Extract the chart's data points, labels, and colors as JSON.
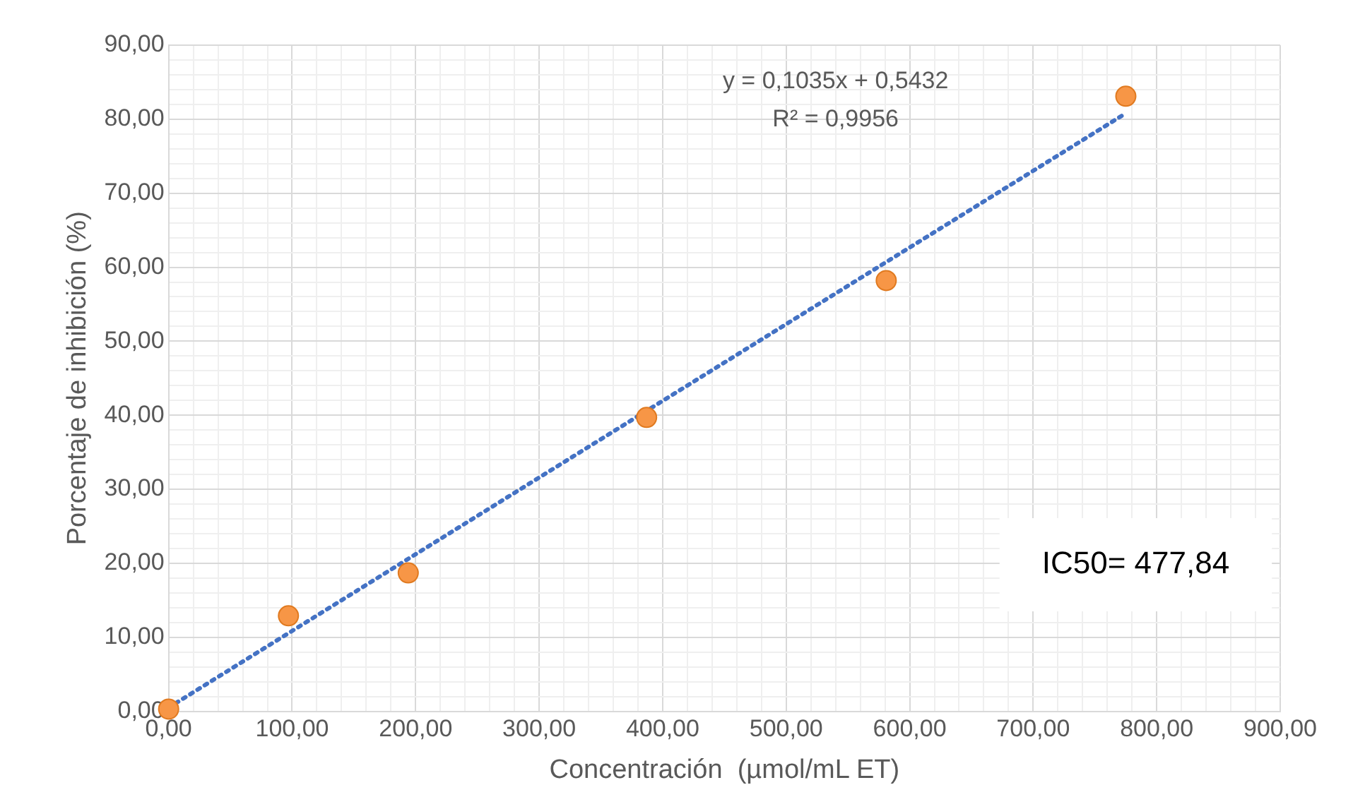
{
  "chart_data": {
    "type": "scatter",
    "xlabel": "Concentración  (µmol/mL ET)",
    "ylabel": "Porcentaje de inhibición (%)",
    "xlim": [
      0,
      900
    ],
    "xticks": [
      {
        "value": 0,
        "label": "0,00"
      },
      {
        "value": 20,
        "label": null
      },
      {
        "value": 40,
        "label": null
      },
      {
        "value": 60,
        "label": null
      },
      {
        "value": 80,
        "label": null
      },
      {
        "value": 100,
        "label": "100,00"
      },
      {
        "value": 120,
        "label": null
      },
      {
        "value": 140,
        "label": null
      },
      {
        "value": 160,
        "label": null
      },
      {
        "value": 180,
        "label": null
      },
      {
        "value": 200,
        "label": "200,00"
      },
      {
        "value": 220,
        "label": null
      },
      {
        "value": 240,
        "label": null
      },
      {
        "value": 260,
        "label": null
      },
      {
        "value": 280,
        "label": null
      },
      {
        "value": 300,
        "label": "300,00"
      },
      {
        "value": 320,
        "label": null
      },
      {
        "value": 340,
        "label": null
      },
      {
        "value": 360,
        "label": null
      },
      {
        "value": 380,
        "label": null
      },
      {
        "value": 400,
        "label": "400,00"
      },
      {
        "value": 420,
        "label": null
      },
      {
        "value": 440,
        "label": null
      },
      {
        "value": 460,
        "label": null
      },
      {
        "value": 480,
        "label": null
      },
      {
        "value": 500,
        "label": "500,00"
      },
      {
        "value": 520,
        "label": null
      },
      {
        "value": 540,
        "label": null
      },
      {
        "value": 560,
        "label": null
      },
      {
        "value": 580,
        "label": null
      },
      {
        "value": 600,
        "label": "600,00"
      },
      {
        "value": 620,
        "label": null
      },
      {
        "value": 640,
        "label": null
      },
      {
        "value": 660,
        "label": null
      },
      {
        "value": 680,
        "label": null
      },
      {
        "value": 700,
        "label": "700,00"
      },
      {
        "value": 720,
        "label": null
      },
      {
        "value": 740,
        "label": null
      },
      {
        "value": 760,
        "label": null
      },
      {
        "value": 780,
        "label": null
      },
      {
        "value": 800,
        "label": "800,00"
      },
      {
        "value": 820,
        "label": null
      },
      {
        "value": 840,
        "label": null
      },
      {
        "value": 860,
        "label": null
      },
      {
        "value": 880,
        "label": null
      },
      {
        "value": 900,
        "label": "900,00"
      }
    ],
    "ylim": [
      0,
      90
    ],
    "yticks": [
      {
        "value": 0,
        "label": "0,00"
      },
      {
        "value": 2,
        "label": null
      },
      {
        "value": 4,
        "label": null
      },
      {
        "value": 6,
        "label": null
      },
      {
        "value": 8,
        "label": null
      },
      {
        "value": 10,
        "label": "10,00"
      },
      {
        "value": 12,
        "label": null
      },
      {
        "value": 14,
        "label": null
      },
      {
        "value": 16,
        "label": null
      },
      {
        "value": 18,
        "label": null
      },
      {
        "value": 20,
        "label": "20,00"
      },
      {
        "value": 22,
        "label": null
      },
      {
        "value": 24,
        "label": null
      },
      {
        "value": 26,
        "label": null
      },
      {
        "value": 28,
        "label": null
      },
      {
        "value": 30,
        "label": "30,00"
      },
      {
        "value": 32,
        "label": null
      },
      {
        "value": 34,
        "label": null
      },
      {
        "value": 36,
        "label": null
      },
      {
        "value": 38,
        "label": null
      },
      {
        "value": 40,
        "label": "40,00"
      },
      {
        "value": 42,
        "label": null
      },
      {
        "value": 44,
        "label": null
      },
      {
        "value": 46,
        "label": null
      },
      {
        "value": 48,
        "label": null
      },
      {
        "value": 50,
        "label": "50,00"
      },
      {
        "value": 52,
        "label": null
      },
      {
        "value": 54,
        "label": null
      },
      {
        "value": 56,
        "label": null
      },
      {
        "value": 58,
        "label": null
      },
      {
        "value": 60,
        "label": "60,00"
      },
      {
        "value": 62,
        "label": null
      },
      {
        "value": 64,
        "label": null
      },
      {
        "value": 66,
        "label": null
      },
      {
        "value": 68,
        "label": null
      },
      {
        "value": 70,
        "label": "70,00"
      },
      {
        "value": 72,
        "label": null
      },
      {
        "value": 74,
        "label": null
      },
      {
        "value": 76,
        "label": null
      },
      {
        "value": 78,
        "label": null
      },
      {
        "value": 80,
        "label": "80,00"
      },
      {
        "value": 82,
        "label": null
      },
      {
        "value": 84,
        "label": null
      },
      {
        "value": 86,
        "label": null
      },
      {
        "value": 88,
        "label": null
      },
      {
        "value": 90,
        "label": "90,00"
      }
    ],
    "grid": true,
    "legend": false,
    "series": [
      {
        "type": "line",
        "color": "#4472c4",
        "x": [
          0,
          775
        ],
        "values": [
          0.5,
          80.8
        ],
        "marker": "none",
        "line_style": "dotted"
      },
      {
        "color": "#f79646",
        "x": [
          0,
          97,
          194,
          387,
          581,
          775
        ],
        "values": [
          0.3,
          12.9,
          18.7,
          39.7,
          58.2,
          83.1
        ],
        "marker": "circle"
      }
    ],
    "annotations": [
      "y = 0,1035x + 0,5432",
      "R² = 0,9956",
      "IC50= 477,84"
    ]
  }
}
